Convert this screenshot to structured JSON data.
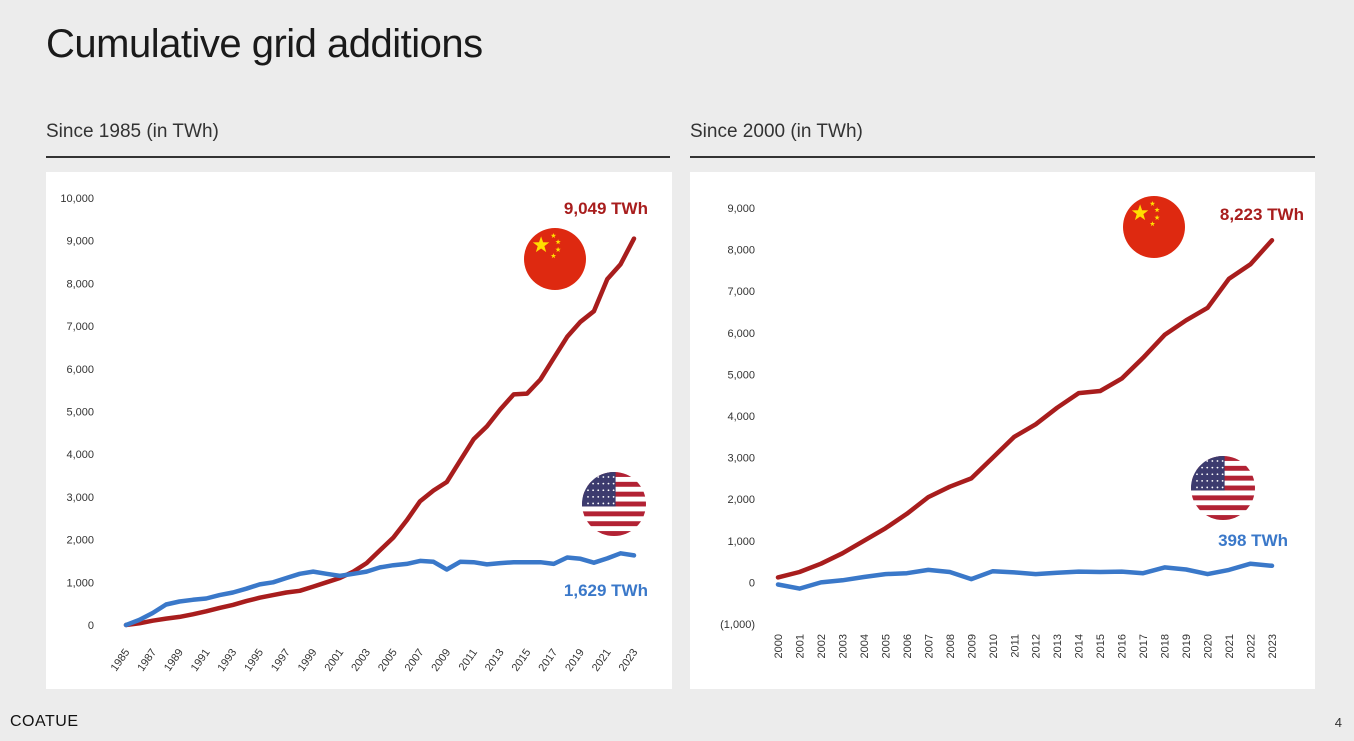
{
  "title": "Cumulative grid additions",
  "footer": {
    "brand": "COATUE",
    "page": "4"
  },
  "colors": {
    "china": "#a81d1d",
    "us": "#3a78c9"
  },
  "icons": [
    "china-flag-icon",
    "us-flag-icon"
  ],
  "chart_data": [
    {
      "type": "line",
      "title": "Since 1985 (in TWh)",
      "ylim": [
        0,
        10000
      ],
      "yticks": [
        0,
        1000,
        2000,
        3000,
        4000,
        5000,
        6000,
        7000,
        8000,
        9000,
        10000
      ],
      "ytick_labels": [
        "0",
        "1,000",
        "2,000",
        "3,000",
        "4,000",
        "5,000",
        "6,000",
        "7,000",
        "8,000",
        "9,000",
        "10,000"
      ],
      "xtick_labels": [
        "1985",
        "1987",
        "1989",
        "1991",
        "1993",
        "1995",
        "1997",
        "1999",
        "2001",
        "2003",
        "2005",
        "2007",
        "2009",
        "2011",
        "2013",
        "2015",
        "2017",
        "2019",
        "2021",
        "2023"
      ],
      "x": [
        1985,
        1986,
        1987,
        1988,
        1989,
        1990,
        1991,
        1992,
        1993,
        1994,
        1995,
        1996,
        1997,
        1998,
        1999,
        2000,
        2001,
        2002,
        2003,
        2004,
        2005,
        2006,
        2007,
        2008,
        2009,
        2010,
        2011,
        2012,
        2013,
        2014,
        2015,
        2016,
        2017,
        2018,
        2019,
        2020,
        2021,
        2022,
        2023
      ],
      "series": [
        {
          "key": "china",
          "values": [
            0,
            40,
            100,
            150,
            190,
            250,
            320,
            400,
            470,
            560,
            640,
            700,
            760,
            800,
            900,
            1000,
            1100,
            1250,
            1450,
            1750,
            2050,
            2450,
            2900,
            3150,
            3350,
            3850,
            4350,
            4650,
            5050,
            5400,
            5420,
            5750,
            6250,
            6750,
            7100,
            7350,
            8100,
            8450,
            9049
          ]
        },
        {
          "key": "us",
          "values": [
            0,
            120,
            280,
            480,
            550,
            590,
            620,
            700,
            760,
            850,
            950,
            1000,
            1100,
            1200,
            1250,
            1200,
            1150,
            1200,
            1250,
            1350,
            1400,
            1430,
            1500,
            1480,
            1300,
            1480,
            1470,
            1420,
            1450,
            1470,
            1470,
            1470,
            1430,
            1580,
            1550,
            1460,
            1560,
            1680,
            1629
          ]
        }
      ],
      "annotations": {
        "china": "9,049 TWh",
        "us": "1,629 TWh"
      }
    },
    {
      "type": "line",
      "title": "Since 2000 (in TWh)",
      "ylim": [
        -1000,
        9000
      ],
      "yticks": [
        -1000,
        0,
        1000,
        2000,
        3000,
        4000,
        5000,
        6000,
        7000,
        8000,
        9000
      ],
      "ytick_labels": [
        "(1,000)",
        "0",
        "1,000",
        "2,000",
        "3,000",
        "4,000",
        "5,000",
        "6,000",
        "7,000",
        "8,000",
        "9,000"
      ],
      "xtick_labels": [
        "2000",
        "2001",
        "2002",
        "2003",
        "2004",
        "2005",
        "2006",
        "2007",
        "2008",
        "2009",
        "2010",
        "2011",
        "2012",
        "2013",
        "2014",
        "2015",
        "2016",
        "2017",
        "2018",
        "2019",
        "2020",
        "2021",
        "2022",
        "2023"
      ],
      "x": [
        2000,
        2001,
        2002,
        2003,
        2004,
        2005,
        2006,
        2007,
        2008,
        2009,
        2010,
        2011,
        2012,
        2013,
        2014,
        2015,
        2016,
        2017,
        2018,
        2019,
        2020,
        2021,
        2022,
        2023
      ],
      "series": [
        {
          "key": "china",
          "values": [
            120,
            250,
            450,
            700,
            1000,
            1300,
            1650,
            2050,
            2300,
            2500,
            3000,
            3500,
            3800,
            4200,
            4550,
            4600,
            4900,
            5400,
            5950,
            6300,
            6600,
            7300,
            7650,
            8223
          ]
        },
        {
          "key": "us",
          "values": [
            -50,
            -150,
            0,
            50,
            130,
            200,
            220,
            300,
            250,
            80,
            270,
            240,
            200,
            230,
            260,
            250,
            260,
            220,
            360,
            310,
            200,
            300,
            450,
            398
          ]
        }
      ],
      "annotations": {
        "china": "8,223 TWh",
        "us": "398 TWh"
      }
    }
  ]
}
